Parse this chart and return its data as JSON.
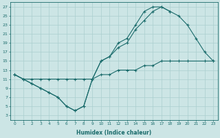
{
  "xlabel": "Humidex (Indice chaleur)",
  "bg_color": "#cce5e5",
  "line_color": "#1a6b6b",
  "grid_color": "#aacfcf",
  "xlim": [
    -0.5,
    23.5
  ],
  "ylim": [
    2,
    28
  ],
  "xticks": [
    0,
    1,
    2,
    3,
    4,
    5,
    6,
    7,
    8,
    9,
    10,
    11,
    12,
    13,
    14,
    15,
    16,
    17,
    18,
    19,
    20,
    21,
    22,
    23
  ],
  "yticks": [
    3,
    5,
    7,
    9,
    11,
    13,
    15,
    17,
    19,
    21,
    23,
    25,
    27
  ],
  "line1_x": [
    0,
    1,
    2,
    3,
    4,
    5,
    6,
    7,
    8,
    9,
    10,
    11,
    12,
    13,
    14,
    15,
    16,
    17,
    18,
    19,
    20,
    21,
    22,
    23
  ],
  "line1_y": [
    12,
    11,
    10,
    9,
    8,
    7,
    5,
    4,
    5,
    11,
    15,
    16,
    18,
    19,
    22,
    24,
    26,
    27,
    26,
    25,
    23,
    20,
    17,
    15
  ],
  "line2_x": [
    0,
    1,
    2,
    3,
    4,
    5,
    6,
    7,
    8,
    9,
    10,
    11,
    12,
    13,
    14,
    15,
    16,
    17,
    18
  ],
  "line2_y": [
    12,
    11,
    10,
    9,
    8,
    7,
    5,
    4,
    5,
    11,
    15,
    16,
    19,
    20,
    23,
    26,
    27,
    27,
    26
  ],
  "line3_x": [
    0,
    1,
    2,
    3,
    4,
    5,
    6,
    7,
    8,
    9,
    10,
    11,
    12,
    13,
    14,
    15,
    16,
    17,
    18,
    19,
    20,
    22,
    23
  ],
  "line3_y": [
    12,
    11,
    11,
    11,
    11,
    11,
    11,
    11,
    11,
    11,
    12,
    12,
    13,
    13,
    13,
    14,
    14,
    15,
    15,
    15,
    15,
    15,
    15
  ]
}
